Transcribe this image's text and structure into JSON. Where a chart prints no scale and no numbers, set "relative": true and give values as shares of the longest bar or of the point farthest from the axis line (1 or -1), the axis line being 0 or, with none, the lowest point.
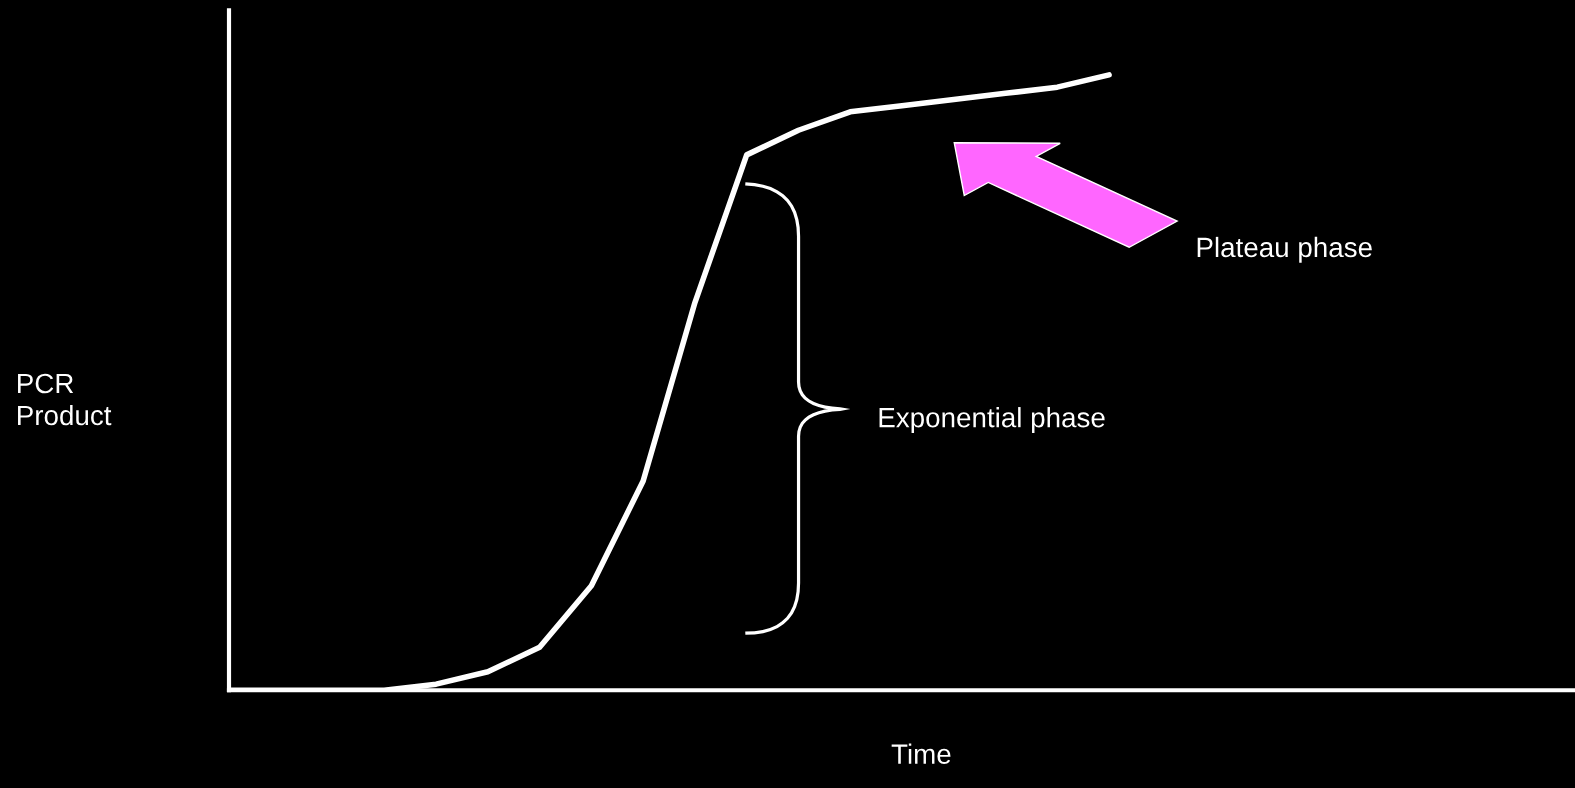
{
  "chart_data": {
    "type": "line",
    "relative": true,
    "xlabel": "Time",
    "ylabel": "PCR\nProduct",
    "color": "#ffffff",
    "categories": [
      null,
      null,
      null,
      null,
      null,
      null,
      null,
      null,
      null,
      null,
      null,
      null,
      null,
      null,
      null,
      null,
      null,
      null,
      null,
      null,
      null,
      null,
      null,
      null,
      null,
      null,
      null
    ],
    "values": [
      0.0,
      0.0,
      0.0,
      0.0,
      0.01,
      0.03,
      0.07,
      0.17,
      0.34,
      0.63,
      0.87,
      0.91,
      0.94,
      0.95,
      0.96,
      0.97,
      0.98,
      1.0,
      null,
      null,
      null,
      null,
      null,
      null,
      null,
      null,
      null
    ],
    "annotations": [
      "Exponential phase",
      "Plateau phase"
    ],
    "grid": false,
    "legend": false,
    "marker": "none",
    "line_style": "solid"
  }
}
